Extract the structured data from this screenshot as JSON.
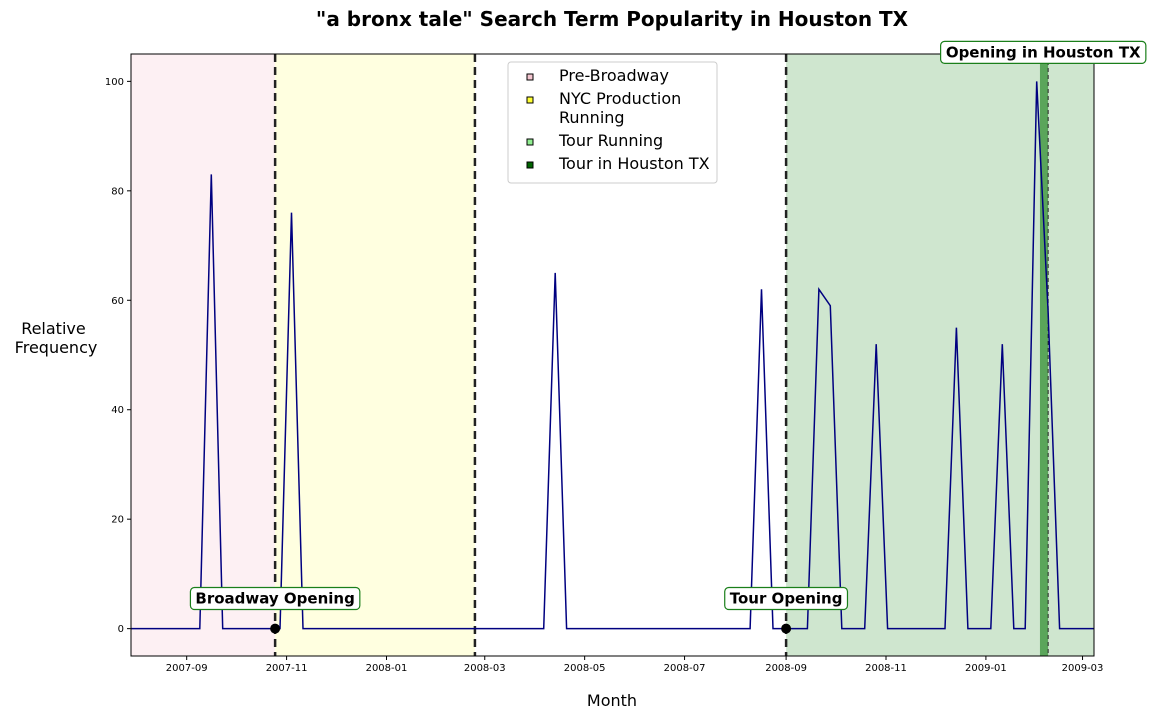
{
  "chart_data": {
    "type": "line",
    "title": "\"a bronx tale\" Search Term Popularity in Houston TX",
    "xlabel": "Month",
    "ylabel_lines": [
      "Relative",
      "Frequency"
    ],
    "x_range": [
      "2007-07-29",
      "2009-03-08"
    ],
    "y_range": [
      -5,
      105
    ],
    "x_ticks": [
      {
        "date": "2007-09-01",
        "label": "2007-09"
      },
      {
        "date": "2007-11-01",
        "label": "2007-11"
      },
      {
        "date": "2008-01-01",
        "label": "2008-01"
      },
      {
        "date": "2008-03-01",
        "label": "2008-03"
      },
      {
        "date": "2008-05-01",
        "label": "2008-05"
      },
      {
        "date": "2008-07-01",
        "label": "2008-07"
      },
      {
        "date": "2008-09-01",
        "label": "2008-09"
      },
      {
        "date": "2008-11-01",
        "label": "2008-11"
      },
      {
        "date": "2009-01-01",
        "label": "2009-01"
      },
      {
        "date": "2009-03-01",
        "label": "2009-03"
      }
    ],
    "y_ticks": [
      0,
      20,
      40,
      60,
      80,
      100
    ],
    "series": [
      {
        "color": "#000080",
        "points": [
          [
            "2007-07-29",
            0
          ],
          [
            "2007-09-09",
            0
          ],
          [
            "2007-09-16",
            83
          ],
          [
            "2007-09-23",
            0
          ],
          [
            "2007-10-28",
            0
          ],
          [
            "2007-11-04",
            76
          ],
          [
            "2007-11-11",
            0
          ],
          [
            "2008-04-06",
            0
          ],
          [
            "2008-04-13",
            65
          ],
          [
            "2008-04-20",
            0
          ],
          [
            "2008-08-10",
            0
          ],
          [
            "2008-08-17",
            62
          ],
          [
            "2008-08-24",
            0
          ],
          [
            "2008-09-14",
            0
          ],
          [
            "2008-09-21",
            62
          ],
          [
            "2008-09-28",
            59
          ],
          [
            "2008-10-05",
            0
          ],
          [
            "2008-10-19",
            0
          ],
          [
            "2008-10-26",
            52
          ],
          [
            "2008-11-02",
            0
          ],
          [
            "2008-12-07",
            0
          ],
          [
            "2008-12-14",
            55
          ],
          [
            "2008-12-21",
            0
          ],
          [
            "2009-01-04",
            0
          ],
          [
            "2009-01-11",
            52
          ],
          [
            "2009-01-18",
            0
          ],
          [
            "2009-01-25",
            0
          ],
          [
            "2009-02-01",
            100
          ],
          [
            "2009-02-08",
            58
          ],
          [
            "2009-02-15",
            0
          ],
          [
            "2009-03-08",
            0
          ]
        ]
      }
    ],
    "regions": [
      {
        "name": "Pre-Broadway",
        "start": "2007-07-29",
        "end": "2007-10-25",
        "color": "#fdf0f3"
      },
      {
        "name": "NYC Production Running",
        "start": "2007-10-25",
        "end": "2008-02-24",
        "color": "#ffffe0"
      },
      {
        "name": "Tour Running",
        "start": "2008-09-01",
        "end": "2009-03-08",
        "color": "#cfe6cf"
      },
      {
        "name": "Tour in Houston TX",
        "start": "2009-02-03",
        "end": "2009-02-08",
        "color": "#5aa55a"
      }
    ],
    "vlines": [
      "2007-10-25",
      "2008-02-24",
      "2008-09-01"
    ],
    "markers": [
      {
        "date": "2007-10-25",
        "value": 0
      },
      {
        "date": "2008-09-01",
        "value": 0
      }
    ],
    "annotations": [
      {
        "text": "Broadway Opening",
        "date": "2007-10-25",
        "value": 5.5
      },
      {
        "text": "Tour Opening",
        "date": "2008-09-01",
        "value": 5.5
      },
      {
        "text": "Opening in Houston TX",
        "date": "2009-02-05",
        "value": 105.3
      }
    ],
    "legend": {
      "position": "top-center",
      "entries": [
        {
          "label_lines": [
            "Pre-Broadway"
          ],
          "color": "#f4c6d0"
        },
        {
          "label_lines": [
            "NYC Production",
            "Running"
          ],
          "color": "#ffff33"
        },
        {
          "label_lines": [
            "Tour Running"
          ],
          "color": "#90ee90"
        },
        {
          "label_lines": [
            "Tour in Houston TX"
          ],
          "color": "#006400"
        }
      ]
    },
    "grid": false
  }
}
